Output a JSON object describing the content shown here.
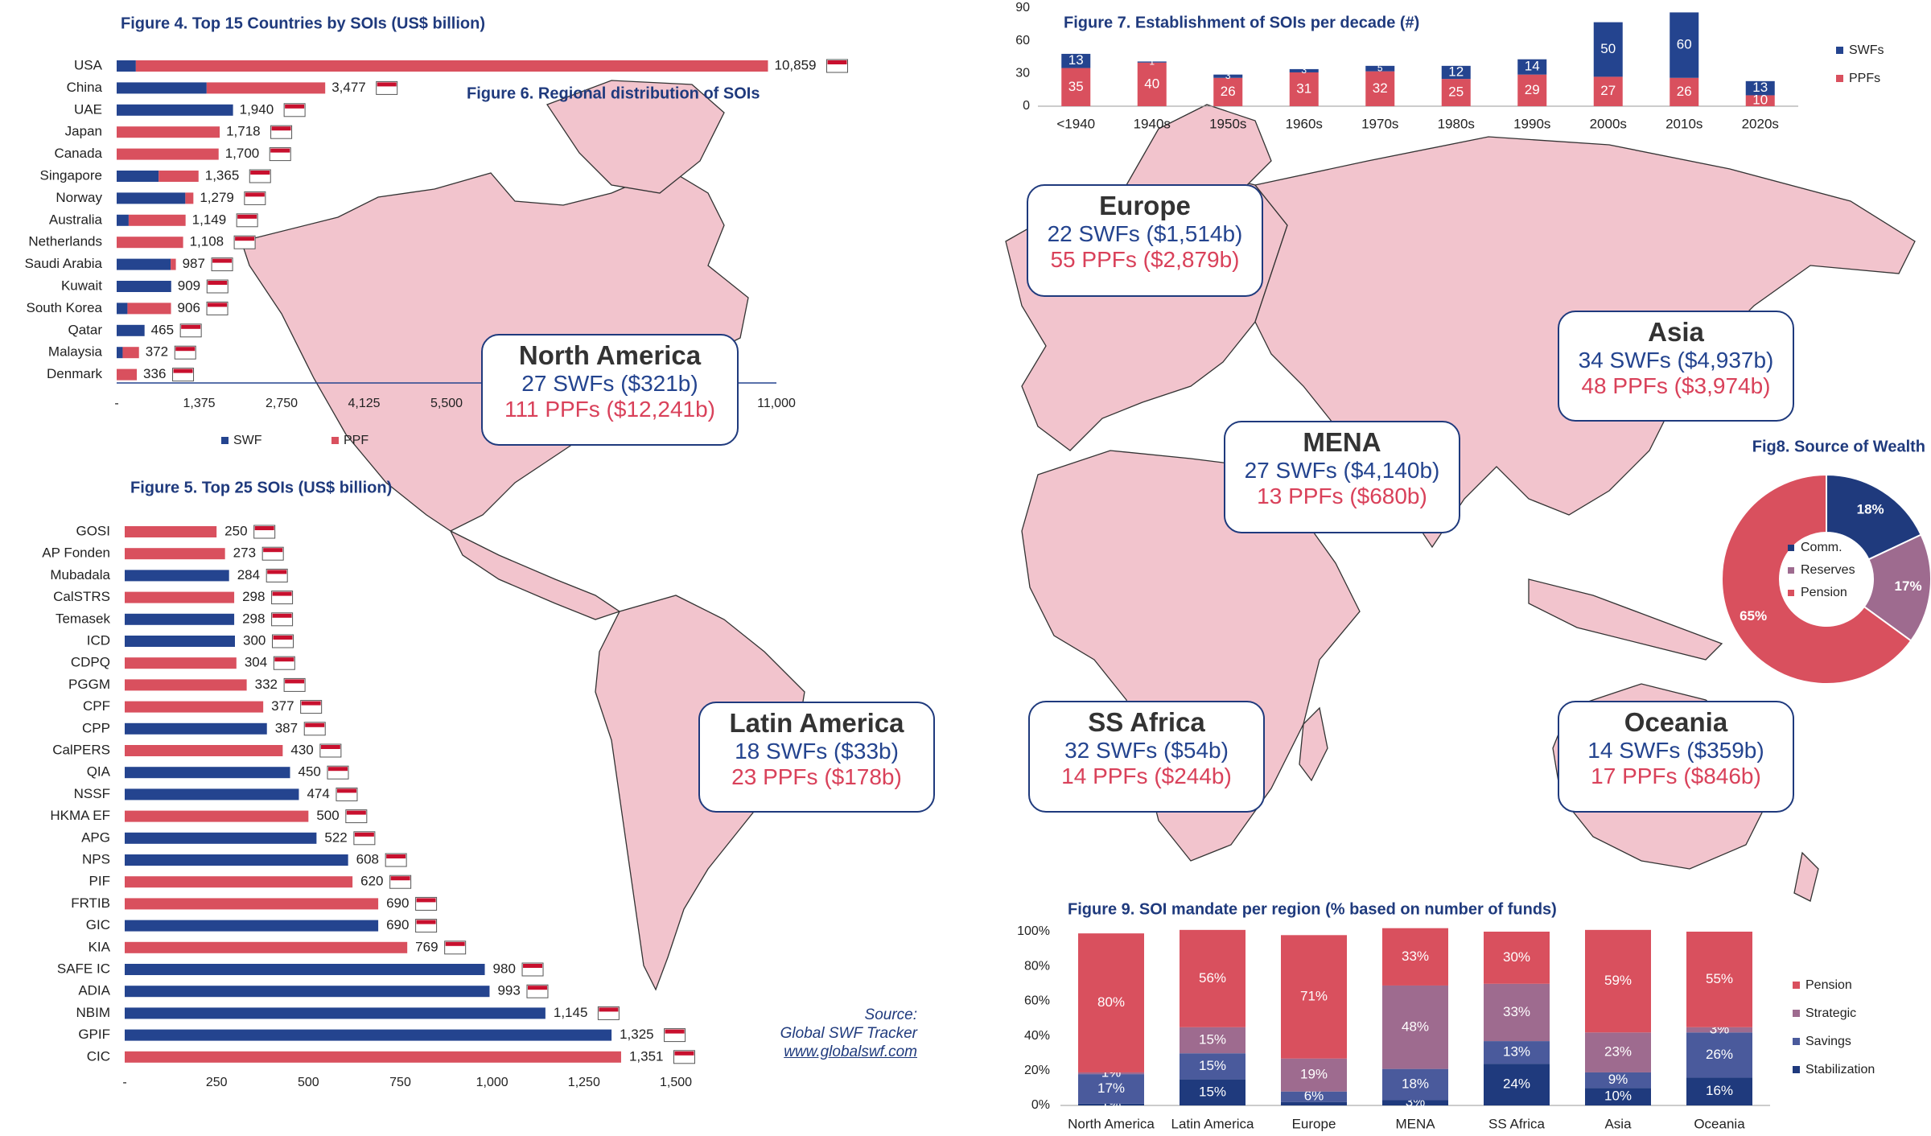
{
  "colors": {
    "swf": "#24448f",
    "ppf": "#d9505e",
    "map_land": "#f2c4cd",
    "savings": "#4a5a9c",
    "strategic": "#9e6b8f",
    "pension": "#d9505e",
    "stabilization": "#1f3a7d"
  },
  "map": {
    "title": "Figure 6. Regional distribution of SOIs",
    "regions": [
      {
        "name": "North America",
        "swfs": "27 SWFs ($321b)",
        "ppfs": "111 PPFs ($12,241b)"
      },
      {
        "name": "Latin America",
        "swfs": "18 SWFs ($33b)",
        "ppfs": "23 PPFs ($178b)"
      },
      {
        "name": "Europe",
        "swfs": "22 SWFs ($1,514b)",
        "ppfs": "55 PPFs ($2,879b)"
      },
      {
        "name": "MENA",
        "swfs": "27 SWFs ($4,140b)",
        "ppfs": "13 PPFs ($680b)"
      },
      {
        "name": "Asia",
        "swfs": "34 SWFs ($4,937b)",
        "ppfs": "48 PPFs ($3,974b)"
      },
      {
        "name": "SS Africa",
        "swfs": "32 SWFs ($54b)",
        "ppfs": "14 PPFs ($244b)"
      },
      {
        "name": "Oceania",
        "swfs": "14 SWFs ($359b)",
        "ppfs": "17 PPFs ($846b)"
      }
    ]
  },
  "source": {
    "line1": "Source:",
    "line2": "Global SWF Tracker",
    "line3": "www.globalswf.com"
  },
  "chart_data": [
    {
      "type": "bar",
      "title": "Figure 4. Top 15 Countries by SOIs (US$ billion)",
      "orientation": "horizontal",
      "stacked": true,
      "categories": [
        "USA",
        "China",
        "UAE",
        "Japan",
        "Canada",
        "Singapore",
        "Norway",
        "Australia",
        "Netherlands",
        "Saudi Arabia",
        "Kuwait",
        "South Korea",
        "Qatar",
        "Malaysia",
        "Denmark"
      ],
      "series": [
        {
          "name": "SWF",
          "values": [
            320,
            1500,
            1940,
            0,
            0,
            700,
            1145,
            200,
            0,
            900,
            909,
            180,
            465,
            100,
            0
          ]
        },
        {
          "name": "PPF",
          "values": [
            10539,
            1977,
            0,
            1718,
            1700,
            665,
            134,
            949,
            1108,
            87,
            0,
            726,
            0,
            272,
            336
          ]
        }
      ],
      "totals": [
        "10,859",
        "3,477",
        "1,940",
        "1,718",
        "1,700",
        "1,365",
        "1,279",
        "1,149",
        "1,108",
        "987",
        "909",
        "906",
        "465",
        "372",
        "336"
      ],
      "xticks": [
        "-",
        "1,375",
        "2,750",
        "4,125",
        "5,500",
        "6,875",
        "8,250",
        "9,625",
        "11,000"
      ],
      "xlim": [
        0,
        11000
      ],
      "legend": [
        "SWF",
        "PPF"
      ]
    },
    {
      "type": "bar",
      "title": "Figure 5. Top 25 SOIs (US$ billion)",
      "orientation": "horizontal",
      "categories": [
        "GOSI",
        "AP Fonden",
        "Mubadala",
        "CalSTRS",
        "Temasek",
        "ICD",
        "CDPQ",
        "PGGM",
        "CPF",
        "CPP",
        "CalPERS",
        "QIA",
        "NSSF",
        "HKMA EF",
        "APG",
        "NPS",
        "PIF",
        "FRTIB",
        "GIC",
        "KIA",
        "SAFE IC",
        "ADIA",
        "NBIM",
        "GPIF",
        "CIC"
      ],
      "values": [
        250,
        273,
        284,
        298,
        298,
        300,
        304,
        332,
        377,
        387,
        430,
        450,
        474,
        500,
        522,
        608,
        620,
        690,
        690,
        769,
        980,
        993,
        1145,
        1325,
        1351
      ],
      "labels": [
        "250",
        "273",
        "284",
        "298",
        "298",
        "300",
        "304",
        "332",
        "377",
        "387",
        "430",
        "450",
        "474",
        "500",
        "522",
        "608",
        "620",
        "690",
        "690",
        "769",
        "980",
        "993",
        "1,145",
        "1,325",
        "1,351"
      ],
      "kinds": [
        "ppf",
        "ppf",
        "swf",
        "ppf",
        "swf",
        "swf",
        "ppf",
        "ppf",
        "ppf",
        "swf",
        "ppf",
        "swf",
        "swf",
        "ppf",
        "swf",
        "swf",
        "ppf",
        "ppf",
        "swf",
        "ppf",
        "swf",
        "swf",
        "swf",
        "swf",
        "ppf"
      ],
      "xticks": [
        "-",
        "250",
        "500",
        "750",
        "1,000",
        "1,250",
        "1,500"
      ],
      "xlim": [
        0,
        1500
      ]
    },
    {
      "type": "bar",
      "title": "Figure 7. Establishment of SOIs per decade (#)",
      "stacked": true,
      "categories": [
        "<1940",
        "1940s",
        "1950s",
        "1960s",
        "1970s",
        "1980s",
        "1990s",
        "2000s",
        "2010s",
        "2020s"
      ],
      "series": [
        {
          "name": "SWFs",
          "values": [
            13,
            1,
            3,
            3,
            5,
            12,
            14,
            50,
            60,
            13
          ]
        },
        {
          "name": "PPFs",
          "values": [
            35,
            40,
            26,
            31,
            32,
            25,
            29,
            27,
            26,
            10
          ]
        }
      ],
      "yticks": [
        "0",
        "30",
        "60",
        "90"
      ],
      "ylim": [
        0,
        90
      ],
      "legend": [
        "SWFs",
        "PPFs"
      ]
    },
    {
      "type": "pie",
      "title": "Fig8. Source of Wealth",
      "labels": [
        "Comm.",
        "Reserves",
        "Pension"
      ],
      "values": [
        18,
        17,
        65
      ],
      "value_labels": [
        "18%",
        "17%",
        "65%"
      ]
    },
    {
      "type": "bar",
      "title": "Figure 9. SOI mandate per region (% based on number of funds)",
      "stacked": true,
      "categories": [
        "North America",
        "Latin America",
        "Europe",
        "MENA",
        "SS Africa",
        "Asia",
        "Oceania"
      ],
      "series": [
        {
          "name": "Stabilization",
          "values": [
            1,
            15,
            2,
            3,
            24,
            10,
            16
          ],
          "labels": [
            "1%",
            "15%",
            "",
            "3%",
            "24%",
            "10%",
            "16%"
          ]
        },
        {
          "name": "Savings",
          "values": [
            17,
            15,
            6,
            18,
            13,
            9,
            26
          ],
          "labels": [
            "17%",
            "15%",
            "6%",
            "18%",
            "13%",
            "9%",
            "26%"
          ]
        },
        {
          "name": "Strategic",
          "values": [
            1,
            15,
            19,
            48,
            33,
            23,
            3
          ],
          "labels": [
            "1%",
            "15%",
            "19%",
            "48%",
            "33%",
            "23%",
            "3%"
          ]
        },
        {
          "name": "Pension",
          "values": [
            80,
            56,
            71,
            33,
            30,
            59,
            55
          ],
          "labels": [
            "80%",
            "56%",
            "71%",
            "33%",
            "30%",
            "59%",
            "55%"
          ]
        }
      ],
      "yticks": [
        "0%",
        "20%",
        "40%",
        "60%",
        "80%",
        "100%"
      ],
      "ylim": [
        0,
        100
      ],
      "legend": [
        "Pension",
        "Strategic",
        "Savings",
        "Stabilization"
      ]
    }
  ]
}
